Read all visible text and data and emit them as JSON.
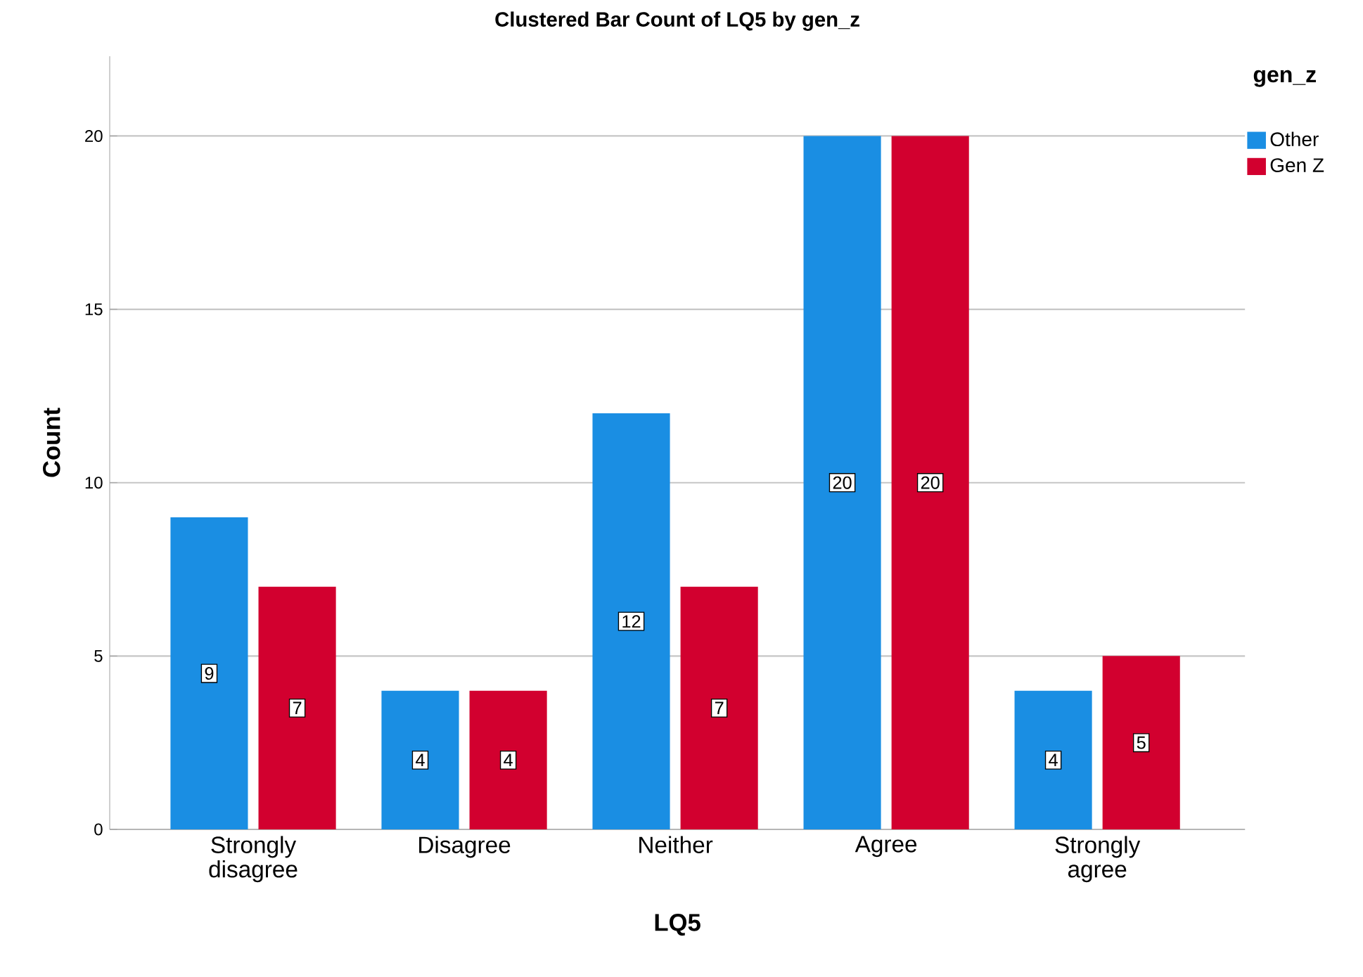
{
  "chart_data": {
    "type": "bar",
    "title": "Clustered Bar Count of LQ5 by gen_z",
    "xlabel": "LQ5",
    "ylabel": "Count",
    "legend_title": "gen_z",
    "categories": [
      "Strongly disagree",
      "Disagree",
      "Neither",
      "Agree",
      "Strongly agree"
    ],
    "series": [
      {
        "name": "Other",
        "color": "#1a8ee3",
        "values": [
          9,
          4,
          12,
          20,
          4
        ]
      },
      {
        "name": "Gen Z",
        "color": "#d2002f",
        "values": [
          7,
          4,
          7,
          20,
          5
        ]
      }
    ],
    "ylim": [
      0,
      22.3
    ],
    "yticks": [
      0,
      5,
      10,
      15,
      20
    ],
    "grid": "y",
    "legend": "top right",
    "data_labels": true
  }
}
